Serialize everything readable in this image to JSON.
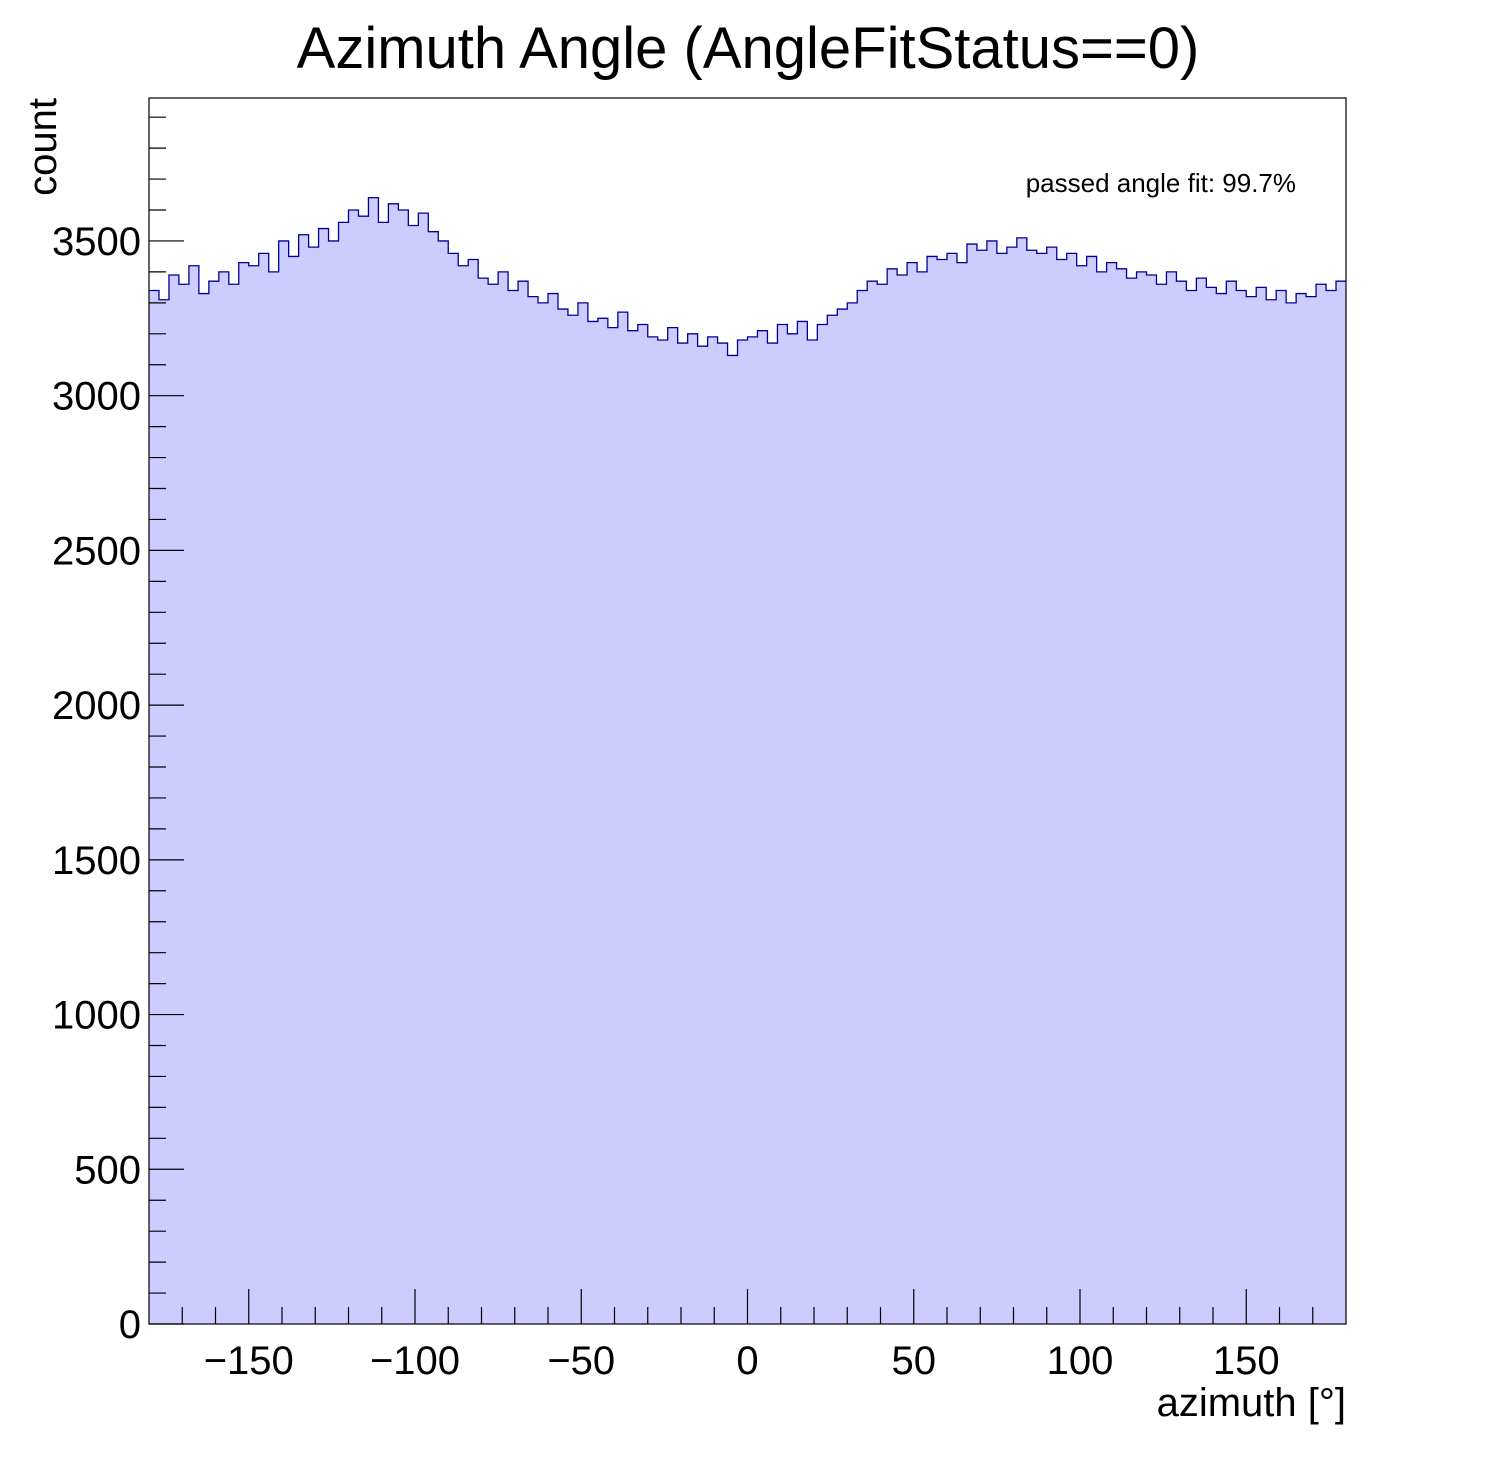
{
  "chart_data": {
    "type": "bar",
    "subtype": "histogram",
    "title": "Azimuth Angle (AngleFitStatus==0)",
    "xlabel": "azimuth [°]",
    "ylabel": "count",
    "xlim": [
      -180,
      180
    ],
    "ylim": [
      0,
      3962
    ],
    "bin_width": 3,
    "x_ticks": [
      -150,
      -100,
      -50,
      0,
      50,
      100,
      150
    ],
    "x_tick_labels": [
      "−150",
      "−100",
      "−50",
      "0",
      "50",
      "100",
      "150"
    ],
    "y_ticks": [
      0,
      500,
      1000,
      1500,
      2000,
      2500,
      3000,
      3500
    ],
    "y_tick_labels": [
      "0",
      "500",
      "1000",
      "1500",
      "2000",
      "2500",
      "3000",
      "3500"
    ],
    "annotation": "passed angle fit: 99.7%",
    "fill_color": "#ccccff",
    "line_color": "#000099",
    "grid": false,
    "values": [
      3340,
      3310,
      3390,
      3360,
      3420,
      3330,
      3370,
      3400,
      3360,
      3430,
      3420,
      3460,
      3400,
      3500,
      3450,
      3520,
      3480,
      3540,
      3500,
      3560,
      3600,
      3580,
      3640,
      3560,
      3620,
      3600,
      3550,
      3590,
      3530,
      3500,
      3460,
      3420,
      3440,
      3380,
      3360,
      3400,
      3340,
      3370,
      3320,
      3300,
      3330,
      3280,
      3260,
      3300,
      3240,
      3250,
      3220,
      3270,
      3210,
      3230,
      3190,
      3180,
      3220,
      3170,
      3200,
      3160,
      3190,
      3170,
      3130,
      3180,
      3190,
      3210,
      3170,
      3230,
      3200,
      3240,
      3180,
      3230,
      3260,
      3280,
      3300,
      3340,
      3370,
      3360,
      3410,
      3390,
      3430,
      3400,
      3450,
      3440,
      3460,
      3430,
      3490,
      3470,
      3500,
      3460,
      3480,
      3510,
      3470,
      3460,
      3480,
      3440,
      3460,
      3420,
      3450,
      3400,
      3430,
      3410,
      3380,
      3400,
      3390,
      3360,
      3400,
      3370,
      3340,
      3380,
      3350,
      3330,
      3370,
      3340,
      3320,
      3350,
      3310,
      3340,
      3300,
      3330,
      3320,
      3360,
      3340,
      3370
    ]
  }
}
